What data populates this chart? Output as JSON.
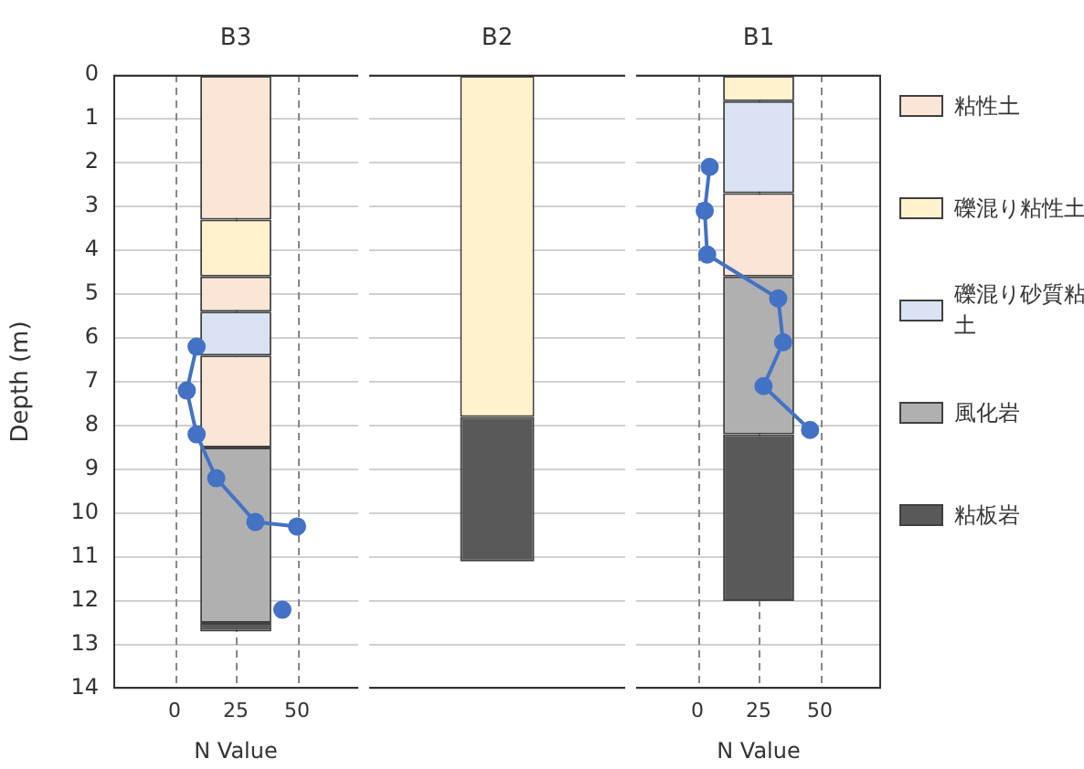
{
  "chart_data": [
    {
      "type": "bar",
      "categories": [
        "B3"
      ],
      "ylabel": "Depth (m)",
      "ylim": [
        14,
        0
      ],
      "yticks": [
        0,
        1,
        2,
        3,
        4,
        5,
        6,
        7,
        8,
        9,
        10,
        11,
        12,
        13,
        14
      ],
      "x2label": "N Value",
      "x2lim": [
        -25,
        75
      ],
      "x2ticks": [
        0,
        25,
        50
      ],
      "grid": true,
      "marker": "circle",
      "series": [
        {
          "color": "#fbe5d6",
          "base": [
            0
          ],
          "values": [
            3.3
          ]
        },
        {
          "color": "#fff2cc",
          "base": [
            3.3
          ],
          "values": [
            1.3
          ]
        },
        {
          "color": "#fbe5d6",
          "base": [
            4.6
          ],
          "values": [
            0.8
          ]
        },
        {
          "color": "#dae3f3",
          "base": [
            5.4
          ],
          "values": [
            1.0
          ]
        },
        {
          "color": "#fbe5d6",
          "base": [
            6.4
          ],
          "values": [
            2.1
          ]
        },
        {
          "color": "#b0b0b0",
          "base": [
            8.5
          ],
          "values": [
            4.0
          ]
        },
        {
          "color": "#595959",
          "base": [
            12.5
          ],
          "values": [
            0.2
          ]
        },
        {
          "type": "line",
          "axis": "x2",
          "color": "#4472c4",
          "x": [
            9,
            5,
            9,
            17,
            33,
            50,
            null,
            44
          ],
          "values": [
            6.2,
            7.2,
            8.2,
            9.2,
            10.2,
            10.3,
            null,
            12.2
          ]
        }
      ]
    },
    {
      "type": "bar",
      "categories": [
        "B2"
      ],
      "ylim": [
        14,
        0
      ],
      "yticks": [
        0,
        1,
        2,
        3,
        4,
        5,
        6,
        7,
        8,
        9,
        10,
        11,
        12,
        13,
        14
      ],
      "grid": "y",
      "tick_labels": "x",
      "series": [
        {
          "color": "#fff2cc",
          "base": [
            0
          ],
          "values": [
            7.8
          ]
        },
        {
          "color": "#595959",
          "base": [
            7.8
          ],
          "values": [
            3.3
          ]
        }
      ]
    },
    {
      "type": "bar",
      "categories": [
        "B1"
      ],
      "ylim": [
        14,
        0
      ],
      "yticks": [
        0,
        1,
        2,
        3,
        4,
        5,
        6,
        7,
        8,
        9,
        10,
        11,
        12,
        13,
        14
      ],
      "x2label": "N Value",
      "x2lim": [
        -25,
        75
      ],
      "x2ticks": [
        0,
        25,
        50
      ],
      "grid": true,
      "tick_labels": "x",
      "legend": "right",
      "marker": "circle",
      "series": [
        {
          "name": "粘性土",
          "color": "#fbe5d6",
          "base": [
            2.7
          ],
          "values": [
            1.9
          ]
        },
        {
          "name": "礫混り粘性土",
          "color": "#fff2cc",
          "base": [
            0
          ],
          "values": [
            0.6
          ]
        },
        {
          "name": "礫混り砂質粘土",
          "color": "#dae3f3",
          "base": [
            0.6
          ],
          "values": [
            2.1
          ]
        },
        {
          "name": "風化岩",
          "color": "#b0b0b0",
          "base": [
            4.6
          ],
          "values": [
            3.6
          ]
        },
        {
          "name": "粘板岩",
          "color": "#595959",
          "base": [
            8.2
          ],
          "values": [
            3.8
          ]
        },
        {
          "type": "line",
          "axis": "x2",
          "color": "#4472c4",
          "x": [
            5,
            3,
            4,
            33,
            35,
            27,
            46
          ],
          "values": [
            2.1,
            3.1,
            4.1,
            5.1,
            6.1,
            7.1,
            8.1
          ]
        }
      ]
    }
  ]
}
